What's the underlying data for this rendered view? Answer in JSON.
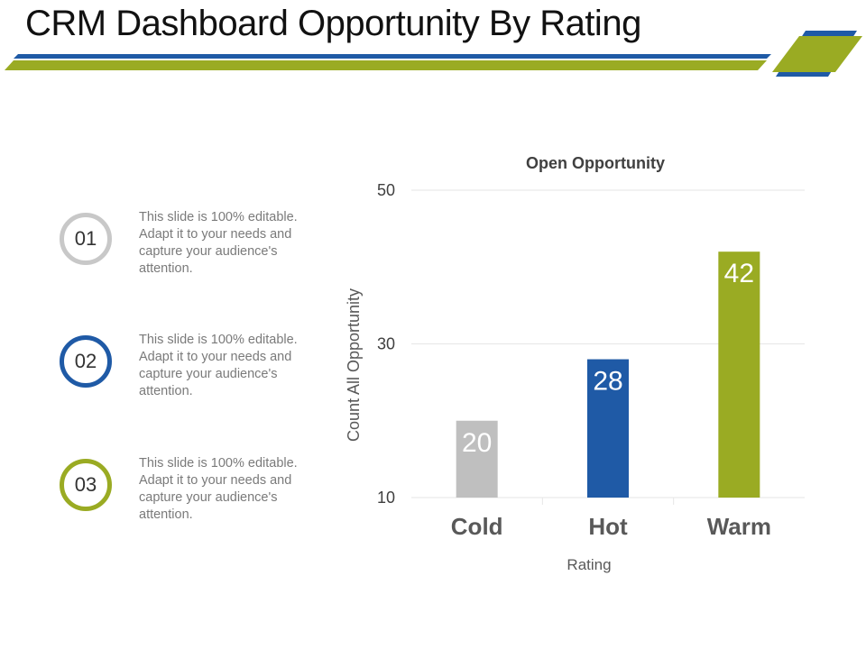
{
  "page": {
    "title": "CRM Dashboard Opportunity By Rating"
  },
  "colors": {
    "green": "#9aab23",
    "blue": "#1f5aa6",
    "gray": "#bfbfbf"
  },
  "items": [
    {
      "number": "01",
      "text": "This slide is 100% editable. Adapt it to your needs and capture your audience's attention.",
      "color": "#c8c8c8"
    },
    {
      "number": "02",
      "text": "This slide is 100% editable. Adapt it to your needs and capture your audience's attention.",
      "color": "#1f5aa6"
    },
    {
      "number": "03",
      "text": "This slide is 100% editable. Adapt it to your needs and capture your audience's attention.",
      "color": "#9aab23"
    }
  ],
  "chart_data": {
    "type": "bar",
    "title": "Open Opportunity",
    "xlabel": "Rating",
    "ylabel": "Count  All  Opportunity",
    "categories": [
      "Cold",
      "Hot",
      "Warm"
    ],
    "values": [
      20,
      28,
      42
    ],
    "bar_colors": [
      "#bfbfbf",
      "#1f5aa6",
      "#9aab23"
    ],
    "ylim": [
      10,
      50
    ],
    "yticks": [
      10,
      30,
      50
    ],
    "grid": true
  }
}
